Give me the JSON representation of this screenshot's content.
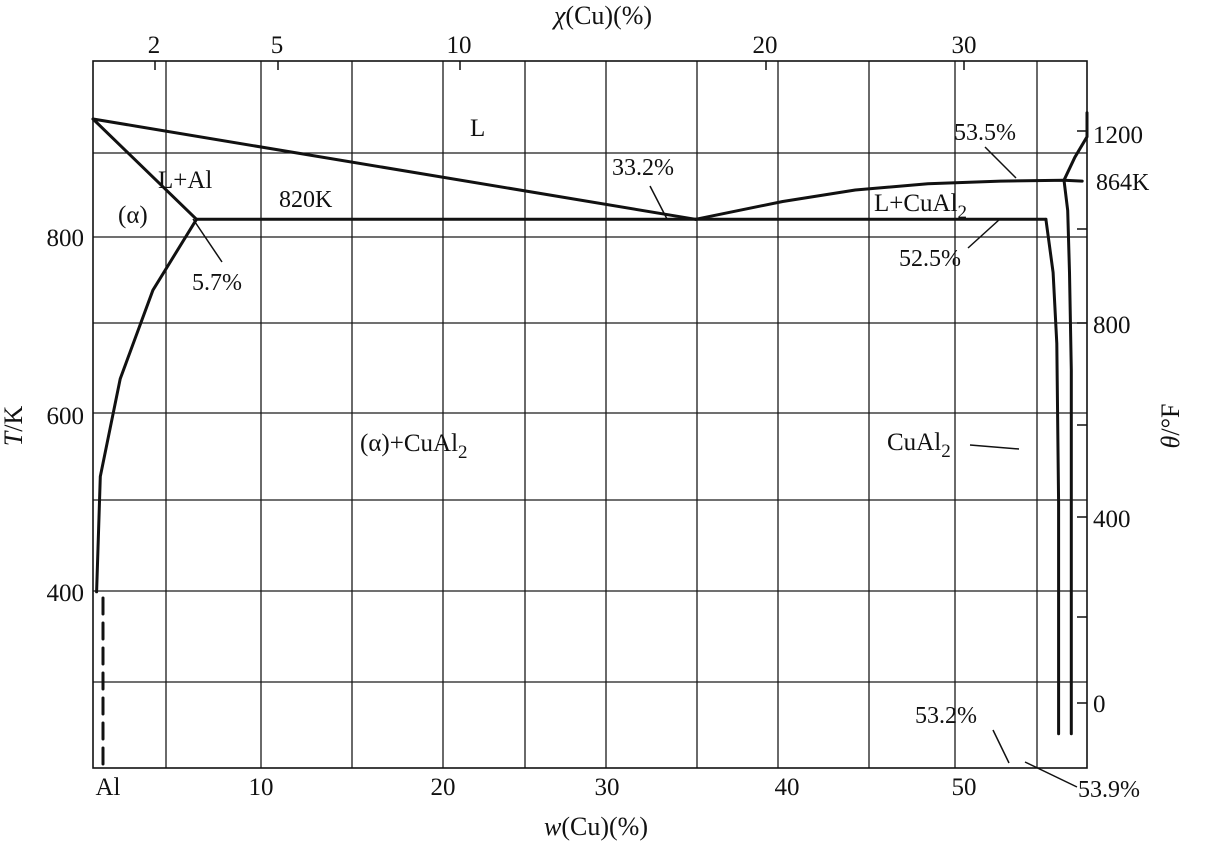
{
  "chart_data": {
    "type": "phase-diagram",
    "title": "",
    "axes": {
      "bottom": {
        "label_var": "w",
        "label_rest": "(Cu)(%)",
        "range": [
          0,
          54.5
        ],
        "origin_label": "Al",
        "ticks": [
          10,
          20,
          30,
          40,
          50
        ]
      },
      "top": {
        "label_var": "χ",
        "label_rest": "(Cu)(%)",
        "ticks": [
          2,
          5,
          10,
          20,
          30
        ]
      },
      "left": {
        "label_var": "T",
        "label_rest": "/K",
        "range": [
          240,
          1040
        ],
        "ticks": [
          400,
          600,
          800
        ]
      },
      "right": {
        "label_var": "θ",
        "label_rest": "/°F",
        "ticks": [
          0,
          400,
          800,
          1200
        ]
      }
    },
    "special_lines": {
      "eutectic": {
        "T": 820,
        "label": "820K"
      },
      "melting": {
        "T": 864,
        "label": "864K"
      }
    },
    "curves": [
      {
        "name": "liquidus-al",
        "points": [
          [
            0,
            933
          ],
          [
            5.7,
            820
          ]
        ]
      },
      {
        "name": "liquidus-eutectic",
        "points": [
          [
            0,
            933
          ],
          [
            33.2,
            820
          ]
        ]
      },
      {
        "name": "liquidus-cual2",
        "points": [
          [
            33.2,
            820
          ],
          [
            38,
            840
          ],
          [
            42,
            853
          ],
          [
            46,
            860
          ],
          [
            50,
            863
          ],
          [
            53.5,
            864
          ],
          [
            54.5,
            863
          ]
        ]
      },
      {
        "name": "eutectic-line",
        "points": [
          [
            5.7,
            820
          ],
          [
            52.5,
            820
          ]
        ]
      },
      {
        "name": "solvus-alpha",
        "points": [
          [
            5.7,
            820
          ],
          [
            3.3,
            740
          ],
          [
            1.5,
            640
          ],
          [
            0.4,
            530
          ],
          [
            0.2,
            400
          ]
        ]
      },
      {
        "name": "cual2-left",
        "points": [
          [
            52.5,
            820
          ],
          [
            52.9,
            760
          ],
          [
            53.1,
            680
          ],
          [
            53.2,
            500
          ],
          [
            53.2,
            240
          ]
        ]
      },
      {
        "name": "cual2-right",
        "points": [
          [
            53.9,
            240
          ],
          [
            53.9,
            650
          ],
          [
            53.8,
            760
          ],
          [
            53.7,
            830
          ],
          [
            53.5,
            864
          ],
          [
            54.1,
            890
          ],
          [
            55,
            913
          ],
          [
            56,
            928
          ],
          [
            57,
            935
          ],
          [
            58,
            940
          ]
        ]
      }
    ],
    "regions": [
      {
        "label": "L",
        "x": 21,
        "T": 943
      },
      {
        "label": "L+Al",
        "x": 4.4,
        "T": 875
      },
      {
        "label": "(α)",
        "x": 2.2,
        "T": 825
      },
      {
        "label": "(α)+CuAl₂",
        "x": 20.5,
        "T": 590
      },
      {
        "label": "L+CuAl₂",
        "x": 49,
        "T": 830
      },
      {
        "label": "CuAl₂",
        "x": 49.5,
        "T": 590
      }
    ],
    "annotations": [
      {
        "label": "5.7%",
        "x": 5.7,
        "T": 820
      },
      {
        "label": "33.2%",
        "x": 33.2,
        "T": 820
      },
      {
        "label": "53.5%",
        "x": 53.5,
        "T": 864
      },
      {
        "label": "52.5%",
        "x": 52.5,
        "T": 820
      },
      {
        "label": "53.2%",
        "x": 53.2,
        "T": 240
      },
      {
        "label": "53.9%",
        "x": 53.9,
        "T": 240
      }
    ]
  }
}
